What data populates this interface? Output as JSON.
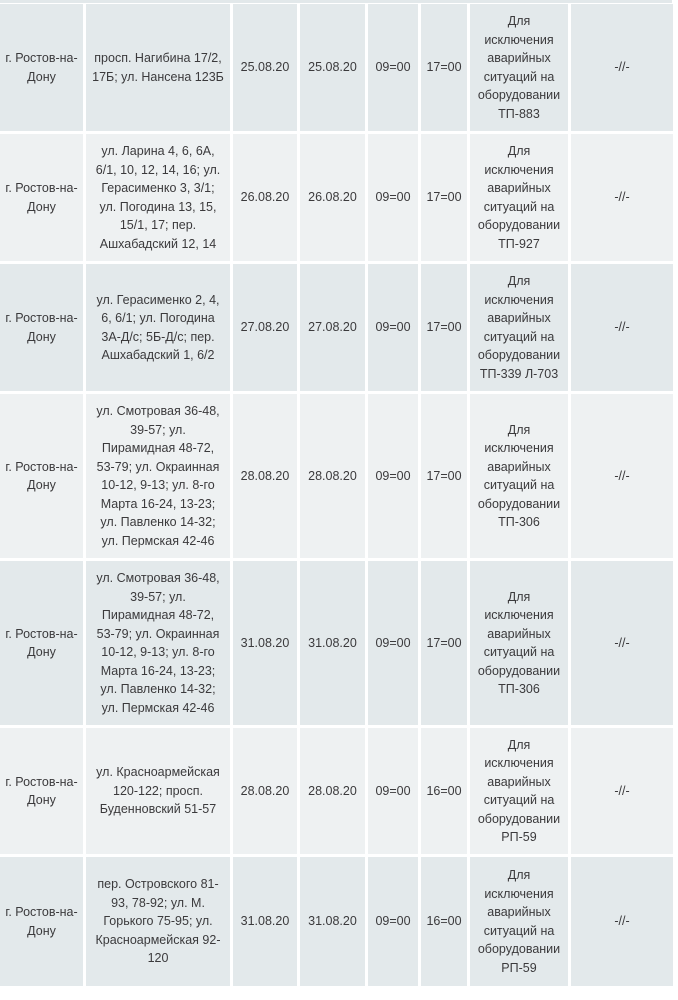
{
  "rows": [
    {
      "city": "г. Ростов-на-Дону",
      "address": "просп. Нагибина 17/2, 17Б; ул. Нансена 123Б",
      "date_start": "25.08.20",
      "date_end": "25.08.20",
      "time_start": "09=00",
      "time_end": "17=00",
      "reason": "Для исключения аварийных ситуаций на оборудовании ТП-883",
      "note": "-//-"
    },
    {
      "city": "г. Ростов-на-Дону",
      "address": "ул. Ларина 4, 6, 6А, 6/1, 10, 12, 14, 16; ул. Герасименко 3, 3/1; ул. Погодина 13, 15, 15/1, 17; пер. Ашхабадский 12, 14",
      "date_start": "26.08.20",
      "date_end": "26.08.20",
      "time_start": "09=00",
      "time_end": "17=00",
      "reason": "Для исключения аварийных ситуаций на оборудовании ТП-927",
      "note": "-//-"
    },
    {
      "city": "г. Ростов-на-Дону",
      "address": "ул. Герасименко 2, 4, 6, 6/1; ул. Погодина 3А-Д/с; 5Б-Д/с; пер. Ашхабадский 1, 6/2",
      "date_start": "27.08.20",
      "date_end": "27.08.20",
      "time_start": "09=00",
      "time_end": "17=00",
      "reason": "Для исключения аварийных ситуаций на оборудовании ТП-339 Л-703",
      "note": "-//-"
    },
    {
      "city": "г. Ростов-на-Дону",
      "address": "ул. Смотровая 36-48, 39-57; ул. Пирамидная 48-72, 53-79; ул. Окраинная 10-12, 9-13; ул. 8-го Марта 16-24, 13-23; ул. Павленко 14-32; ул. Пермская 42-46",
      "date_start": "28.08.20",
      "date_end": "28.08.20",
      "time_start": "09=00",
      "time_end": "17=00",
      "reason": "Для исключения аварийных ситуаций на оборудовании ТП-306",
      "note": "-//-"
    },
    {
      "city": "г. Ростов-на-Дону",
      "address": "ул. Смотровая 36-48, 39-57; ул. Пирамидная 48-72, 53-79; ул. Окраинная 10-12, 9-13; ул. 8-го Марта 16-24, 13-23; ул. Павленко 14-32; ул. Пермская 42-46",
      "date_start": "31.08.20",
      "date_end": "31.08.20",
      "time_start": "09=00",
      "time_end": "17=00",
      "reason": "Для исключения аварийных ситуаций на оборудовании ТП-306",
      "note": "-//-"
    },
    {
      "city": "г. Ростов-на-Дону",
      "address": "ул. Красноармейская 120-122; просп. Буденновский 51-57",
      "date_start": "28.08.20",
      "date_end": "28.08.20",
      "time_start": "09=00",
      "time_end": "16=00",
      "reason": "Для исключения аварийных ситуаций на оборудовании РП-59",
      "note": "-//-"
    },
    {
      "city": "г. Ростов-на-Дону",
      "address": "пер. Островского 81-93, 78-92; ул. М. Горького 75-95; ул. Красноармейская 92-120",
      "date_start": "31.08.20",
      "date_end": "31.08.20",
      "time_start": "09=00",
      "time_end": "16=00",
      "reason": "Для исключения аварийных ситуаций на оборудовании РП-59",
      "note": "-//-"
    }
  ]
}
